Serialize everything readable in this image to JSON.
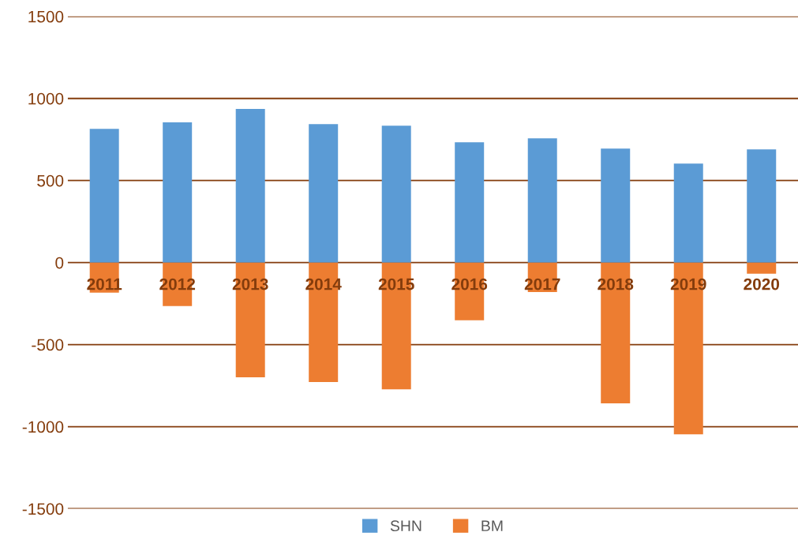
{
  "chart_data": {
    "type": "bar",
    "stacked": true,
    "categories": [
      "2011",
      "2012",
      "2013",
      "2014",
      "2015",
      "2016",
      "2017",
      "2018",
      "2019",
      "2020"
    ],
    "series": [
      {
        "name": "SHN",
        "color": "#5b9bd5",
        "values": [
          815,
          854,
          936,
          844,
          834,
          733,
          757,
          694,
          603,
          690
        ]
      },
      {
        "name": "BM",
        "color": "#ed7d31",
        "values": [
          -183,
          -265,
          -699,
          -728,
          -772,
          -352,
          -180,
          -858,
          -1047,
          -68
        ]
      }
    ],
    "ylim": [
      -1500,
      1500
    ],
    "yticks": [
      -1500,
      -1000,
      -500,
      0,
      500,
      1000,
      1500
    ],
    "grid": "y",
    "legend": "bottom"
  }
}
